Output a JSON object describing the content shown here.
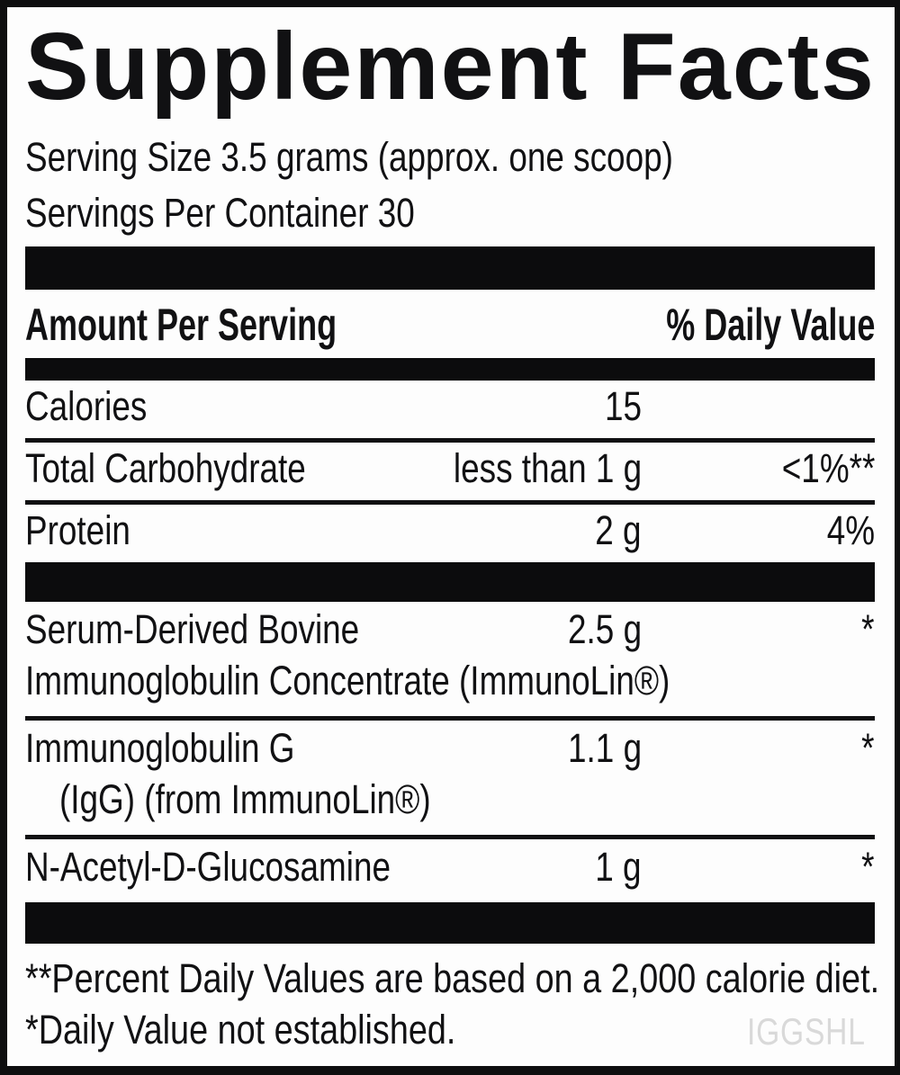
{
  "colors": {
    "ink": "#111113",
    "bar": "#0c0c0d",
    "watermark_gray": "#d9d9d9"
  },
  "title": "Supplement Facts",
  "serving": {
    "size": "Serving Size 3.5 grams (approx. one scoop)",
    "per_container": "Servings Per Container 30"
  },
  "table": {
    "header": {
      "amount_label": "Amount Per Serving",
      "dv_label": "% Daily Value"
    },
    "rows": [
      {
        "name": "Calories",
        "amount": "15",
        "dv": ""
      },
      {
        "name": "Total Carbohydrate",
        "amount": "less than 1 g",
        "dv": "<1%**"
      },
      {
        "name": "Protein",
        "amount": "2 g",
        "dv": "4%"
      },
      {
        "name": "Serum-Derived Bovine",
        "name_line2": "Immunoglobulin Concentrate (ImmunoLin®)",
        "amount": "2.5 g",
        "dv": "*"
      },
      {
        "name": "Immunoglobulin G",
        "name_line2": "(IgG) (from ImmunoLin®)",
        "amount": "1.1 g",
        "dv": "*"
      },
      {
        "name": "N-Acetyl-D-Glucosamine",
        "amount": "1 g",
        "dv": "*"
      }
    ]
  },
  "footnotes": [
    "**Percent Daily Values are based on a 2,000 calorie diet.",
    "*Daily Value not established."
  ],
  "watermark": "IGGSHL"
}
